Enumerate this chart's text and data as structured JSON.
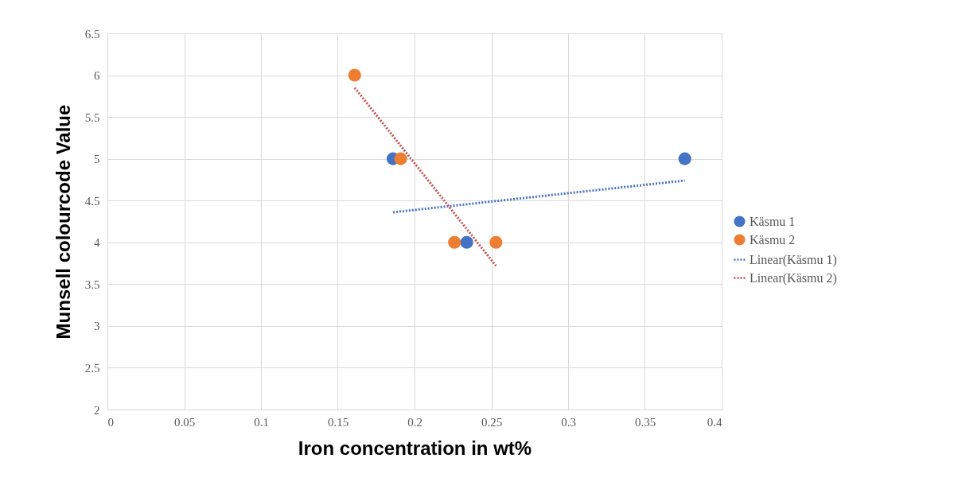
{
  "chart_data": {
    "type": "scatter",
    "xlabel": "Iron concentration in wt%",
    "ylabel": "Munsell colourcode Value",
    "series": [
      {
        "name": "Käsmu 1",
        "color": "#4472c4",
        "marker": "circle",
        "x": [
          0.186,
          0.234,
          0.376
        ],
        "values": [
          5,
          4,
          5
        ]
      },
      {
        "name": "Käsmu 2",
        "color": "#ed7d31",
        "marker": "circle",
        "x": [
          0.161,
          0.191,
          0.226,
          0.253
        ],
        "values": [
          6,
          5,
          4,
          4
        ]
      },
      {
        "name": "Linear(Käsmu 1)",
        "color": "#4472c4",
        "type": "line",
        "line_style": "dotted",
        "x": [
          0.186,
          0.376
        ],
        "values": [
          4.36,
          4.74
        ]
      },
      {
        "name": "Linear(Käsmu 2)",
        "color": "#c0504d",
        "type": "line",
        "line_style": "dotted",
        "x": [
          0.161,
          0.253
        ],
        "values": [
          5.85,
          3.72
        ]
      }
    ],
    "xlim": [
      0,
      0.4
    ],
    "xticks": [
      0,
      0.05,
      0.1,
      0.15,
      0.2,
      0.25,
      0.3,
      0.35,
      0.4
    ],
    "ylim": [
      2,
      6.5
    ],
    "yticks": [
      2,
      2.5,
      3,
      3.5,
      4,
      4.5,
      5,
      5.5,
      6,
      6.5
    ],
    "grid": true,
    "legend": "right"
  }
}
